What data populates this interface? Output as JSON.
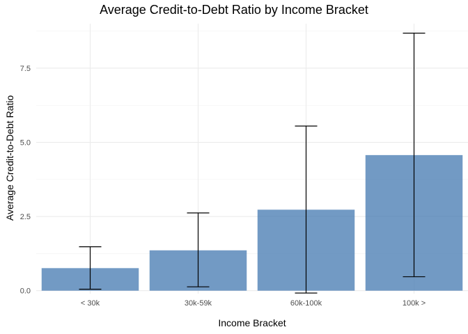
{
  "chart_data": {
    "type": "bar",
    "title": "Average Credit-to-Debt Ratio by Income Bracket",
    "xlabel": "Income Bracket",
    "ylabel": "Average Credit-to-Debt Ratio",
    "categories": [
      "< 30k",
      "30k-59k",
      "60k-100k",
      "100k >"
    ],
    "values": [
      0.76,
      1.36,
      2.73,
      4.57
    ],
    "error_bars": [
      {
        "low": 0.05,
        "high": 1.48
      },
      {
        "low": 0.13,
        "high": 2.62
      },
      {
        "low": -0.08,
        "high": 5.55
      },
      {
        "low": 0.47,
        "high": 8.68
      }
    ],
    "ylim": [
      -0.1,
      9.0
    ],
    "yticks": [
      0.0,
      2.5,
      5.0,
      7.5
    ],
    "ytick_labels": [
      "0.0",
      "2.5",
      "5.0",
      "7.5"
    ],
    "grid": true,
    "legend": "none",
    "bar_color": "#4A7EB4"
  }
}
